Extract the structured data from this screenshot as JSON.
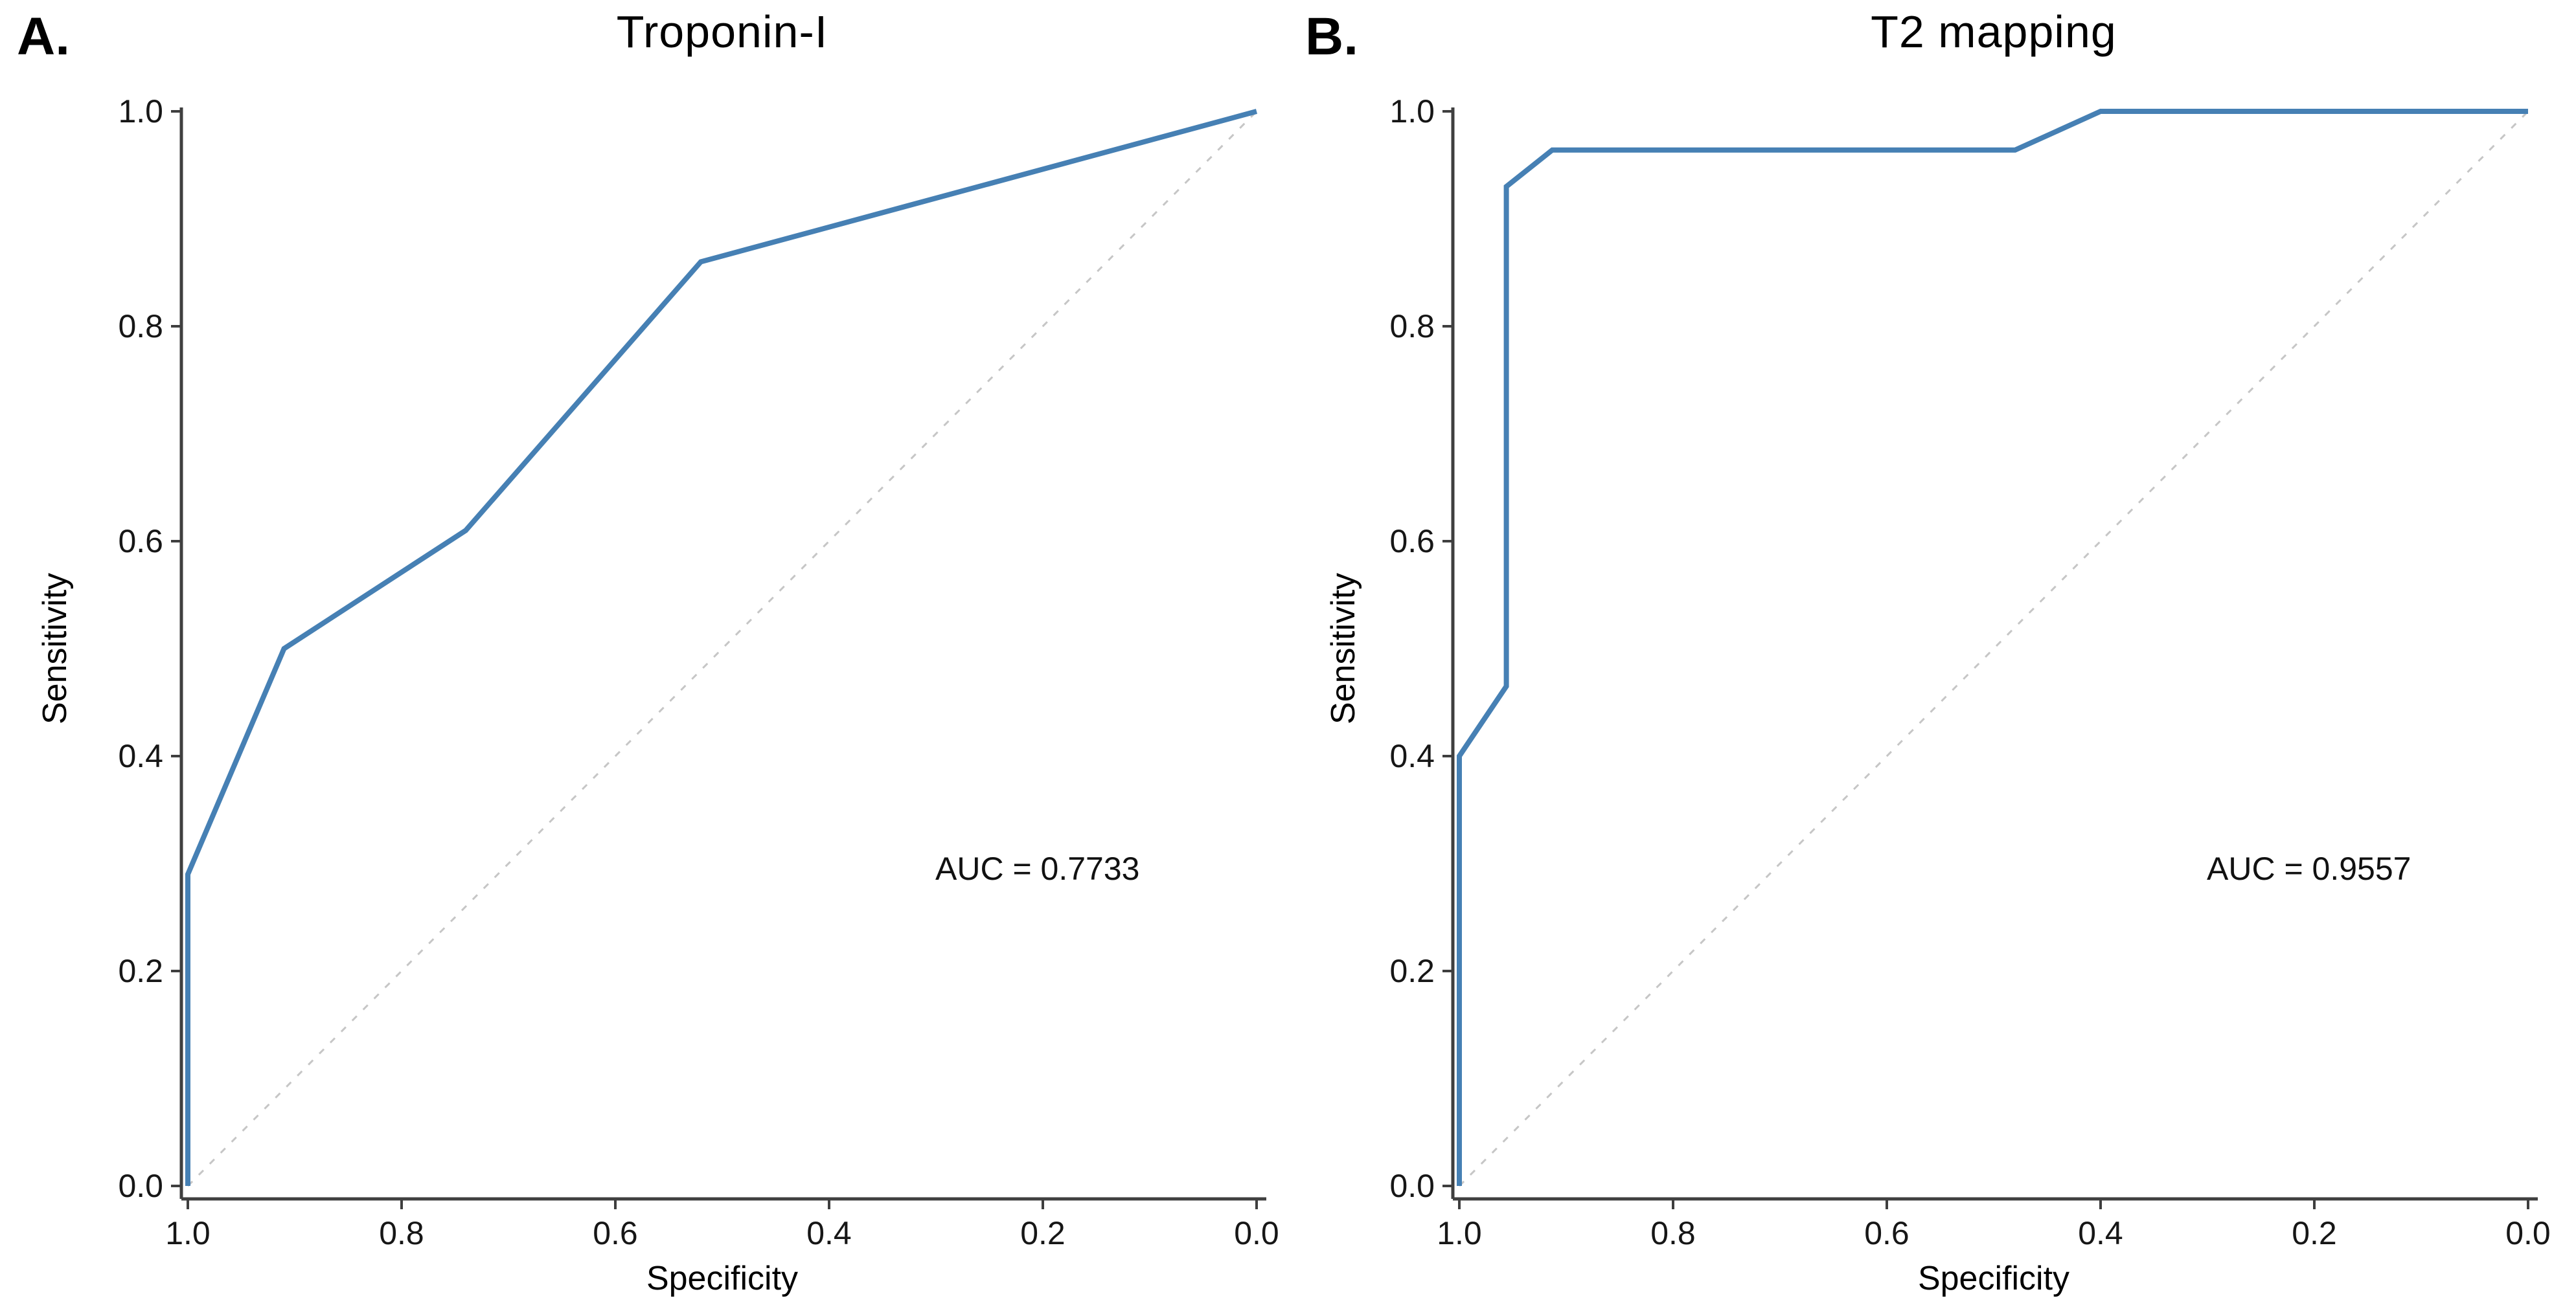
{
  "figure": {
    "background": "#ffffff",
    "panel_count": 2
  },
  "colors": {
    "roc_curve": "#4680b4",
    "reference_line": "#c6c6c6",
    "axis": "#3f3f3f",
    "tick_text": "#161616",
    "label_text": "#000000",
    "annotation_text": "#111111"
  },
  "chart_data": [
    {
      "type": "line",
      "panel_label": "A.",
      "title": "Troponin-I",
      "xlabel": "Specificity",
      "ylabel": "Sensitivity",
      "xlim": [
        1.0,
        0.0
      ],
      "ylim": [
        0.0,
        1.0
      ],
      "x_axis_reversed": true,
      "grid": false,
      "legend": "none",
      "x_ticks": [
        "1.0",
        "0.8",
        "0.6",
        "0.4",
        "0.2",
        "0.0"
      ],
      "y_ticks": [
        "1.0",
        "0.8",
        "0.6",
        "0.4",
        "0.2",
        "0.0"
      ],
      "annotation": "AUC = 0.7733",
      "auc": 0.7733,
      "series": [
        {
          "name": "ROC curve",
          "style": "solid",
          "points_spec_sens": [
            [
              1.0,
              0.0
            ],
            [
              1.0,
              0.29
            ],
            [
              0.91,
              0.5
            ],
            [
              0.74,
              0.61
            ],
            [
              0.52,
              0.86
            ],
            [
              0.0,
              1.0
            ]
          ]
        },
        {
          "name": "chance diagonal",
          "style": "dotted",
          "points_spec_sens": [
            [
              1.0,
              0.0
            ],
            [
              0.0,
              1.0
            ]
          ]
        }
      ]
    },
    {
      "type": "line",
      "panel_label": "B.",
      "title": "T2 mapping",
      "xlabel": "Specificity",
      "ylabel": "Sensitivity",
      "xlim": [
        1.0,
        0.0
      ],
      "ylim": [
        0.0,
        1.0
      ],
      "x_axis_reversed": true,
      "grid": false,
      "legend": "none",
      "x_ticks": [
        "1.0",
        "0.8",
        "0.6",
        "0.4",
        "0.2",
        "0.0"
      ],
      "y_ticks": [
        "1.0",
        "0.8",
        "0.6",
        "0.4",
        "0.2",
        "0.0"
      ],
      "annotation": "AUC = 0.9557",
      "auc": 0.9557,
      "series": [
        {
          "name": "ROC curve",
          "style": "solid",
          "points_spec_sens": [
            [
              1.0,
              0.0
            ],
            [
              1.0,
              0.4
            ],
            [
              0.956,
              0.465
            ],
            [
              0.956,
              0.93
            ],
            [
              0.913,
              0.964
            ],
            [
              0.48,
              0.964
            ],
            [
              0.4,
              1.0
            ],
            [
              0.0,
              1.0
            ]
          ]
        },
        {
          "name": "chance diagonal",
          "style": "dotted",
          "points_spec_sens": [
            [
              1.0,
              0.0
            ],
            [
              0.0,
              1.0
            ]
          ]
        }
      ]
    }
  ]
}
